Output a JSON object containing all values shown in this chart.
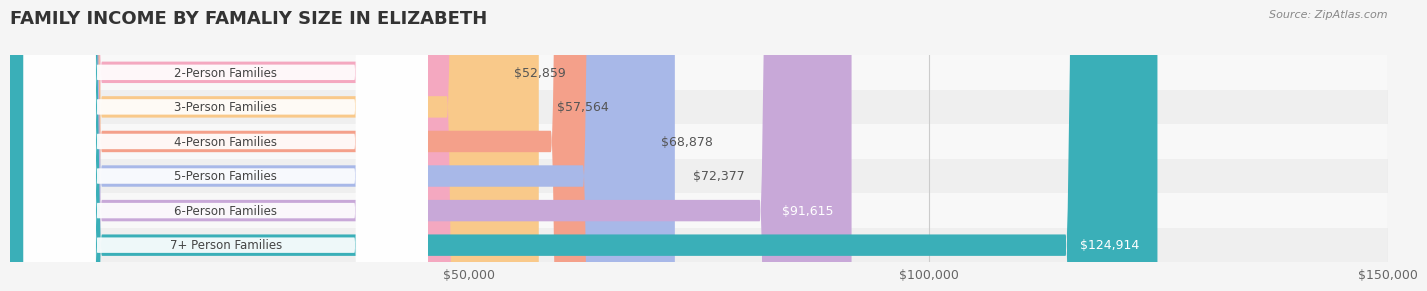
{
  "title": "FAMILY INCOME BY FAMALIY SIZE IN ELIZABETH",
  "source": "Source: ZipAtlas.com",
  "categories": [
    "2-Person Families",
    "3-Person Families",
    "4-Person Families",
    "5-Person Families",
    "6-Person Families",
    "7+ Person Families"
  ],
  "values": [
    52859,
    57564,
    68878,
    72377,
    91615,
    124914
  ],
  "labels": [
    "$52,859",
    "$57,564",
    "$68,878",
    "$72,377",
    "$91,615",
    "$124,914"
  ],
  "bar_colors": [
    "#f4a8c0",
    "#f9c98a",
    "#f4a08a",
    "#a8b8e8",
    "#c8a8d8",
    "#3aafb8"
  ],
  "label_colors": [
    "#555555",
    "#555555",
    "#555555",
    "#555555",
    "#555555",
    "#ffffff"
  ],
  "bg_color": "#f0f0f0",
  "row_bg_colors": [
    "#f8f8f8",
    "#f0f0f0"
  ],
  "xlim": [
    0,
    150000
  ],
  "xticks": [
    0,
    50000,
    100000,
    150000
  ],
  "xtick_labels": [
    "",
    "$50,000",
    "$100,000",
    "$150,000"
  ],
  "title_fontsize": 13,
  "bar_height": 0.62,
  "label_color_inside": "#ffffff",
  "label_color_outside": "#555555"
}
